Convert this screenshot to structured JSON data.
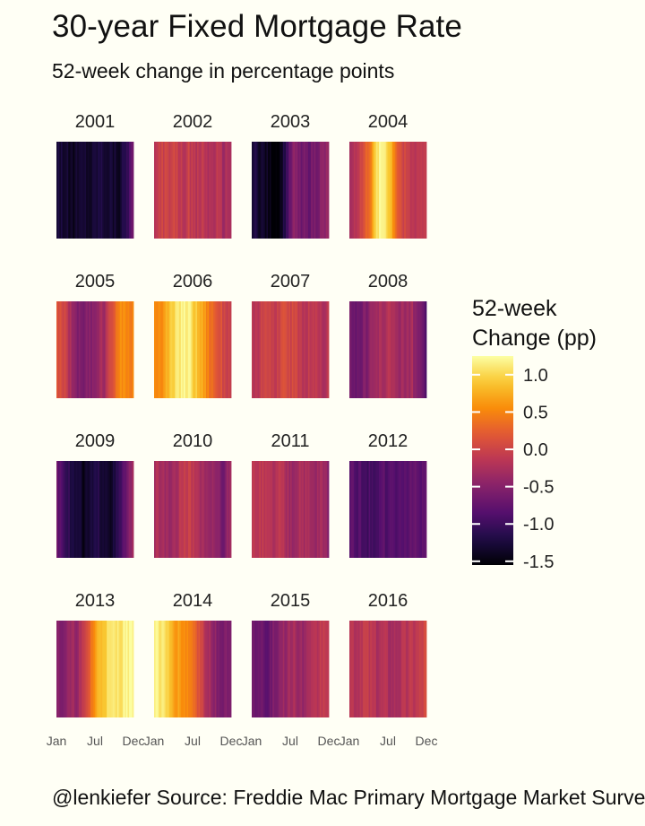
{
  "title": "30-year Fixed Mortgage Rate",
  "subtitle": "52-week change in percentage points",
  "caption": "@lenkiefer Source: Freddie Mac Primary Mortgage Market Survey",
  "legend": {
    "title_line1": "52-week",
    "title_line2": "Change (pp)",
    "ticks": [
      1.0,
      0.5,
      0.0,
      -0.5,
      -1.0,
      -1.5
    ],
    "tick_labels": [
      "1.0",
      "0.5",
      "0.0",
      "-0.5",
      "-1.0",
      "-1.5"
    ],
    "min": -1.55,
    "max": 1.25
  },
  "colors": {
    "background": "#fffff5",
    "palette": "inferno"
  },
  "chart_data": {
    "type": "heatmap",
    "facet_by": "year",
    "x_tick_labels": [
      "Jan",
      "Jul",
      "Dec"
    ],
    "weeks_per_year": 52,
    "panels": [
      {
        "year": "2001",
        "control_points": [
          -1.2,
          -1.3,
          -1.4,
          -1.35,
          -1.3,
          -1.35,
          -1.2,
          -1.25,
          -1.3,
          -1.35,
          -1.1,
          -0.7
        ]
      },
      {
        "year": "2002",
        "control_points": [
          -0.2,
          0.05,
          -0.1,
          0.0,
          -0.15,
          -0.05,
          -0.2,
          -0.1,
          -0.25,
          -0.15,
          -0.3,
          -0.2
        ]
      },
      {
        "year": "2003",
        "control_points": [
          -1.2,
          -1.3,
          -1.4,
          -1.55,
          -1.5,
          -1.0,
          -0.5,
          -0.6,
          -0.7,
          -0.6,
          -0.5,
          -0.45
        ]
      },
      {
        "year": "2004",
        "control_points": [
          -0.3,
          -0.1,
          0.1,
          0.5,
          1.1,
          1.2,
          0.8,
          0.2,
          0.0,
          -0.15,
          -0.1,
          -0.05
        ]
      },
      {
        "year": "2005",
        "control_points": [
          0.1,
          0.05,
          -0.3,
          -0.5,
          -0.6,
          -0.5,
          -0.35,
          -0.3,
          0.2,
          0.5,
          0.6,
          0.45
        ]
      },
      {
        "year": "2006",
        "control_points": [
          0.55,
          0.6,
          0.8,
          1.0,
          1.2,
          1.15,
          0.9,
          0.7,
          0.4,
          0.2,
          0.05,
          -0.05
        ]
      },
      {
        "year": "2007",
        "control_points": [
          -0.2,
          -0.1,
          0.05,
          -0.1,
          0.0,
          0.1,
          0.0,
          -0.1,
          -0.15,
          -0.05,
          -0.2,
          -0.15
        ]
      },
      {
        "year": "2008",
        "control_points": [
          -0.55,
          -0.7,
          -0.6,
          -0.4,
          -0.3,
          -0.25,
          -0.2,
          -0.3,
          -0.35,
          -0.3,
          -0.6,
          -0.9
        ]
      },
      {
        "year": "2009",
        "control_points": [
          -0.7,
          -0.9,
          -1.2,
          -1.3,
          -1.4,
          -1.3,
          -1.2,
          -1.25,
          -1.35,
          -1.1,
          -0.7,
          -0.4
        ]
      },
      {
        "year": "2010",
        "control_points": [
          -0.3,
          -0.25,
          -0.35,
          -0.3,
          -0.1,
          0.0,
          -0.2,
          -0.35,
          -0.4,
          -0.5,
          -0.6,
          -0.3
        ]
      },
      {
        "year": "2011",
        "control_points": [
          -0.2,
          -0.1,
          -0.2,
          -0.25,
          -0.15,
          -0.3,
          -0.35,
          -0.2,
          -0.3,
          -0.4,
          -0.3,
          -0.45
        ]
      },
      {
        "year": "2012",
        "control_points": [
          -0.8,
          -0.85,
          -0.9,
          -0.95,
          -0.9,
          -0.85,
          -0.9,
          -0.85,
          -0.8,
          -0.75,
          -0.8,
          -0.75
        ]
      },
      {
        "year": "2013",
        "control_points": [
          -0.55,
          -0.5,
          -0.4,
          -0.35,
          -0.1,
          0.4,
          0.8,
          1.0,
          1.05,
          1.1,
          1.2,
          1.25
        ]
      },
      {
        "year": "2014",
        "control_points": [
          1.2,
          1.1,
          0.9,
          0.7,
          0.6,
          0.5,
          0.3,
          -0.05,
          -0.3,
          -0.5,
          -0.55,
          -0.6
        ]
      },
      {
        "year": "2015",
        "control_points": [
          -0.7,
          -0.6,
          -0.75,
          -0.6,
          -0.5,
          -0.35,
          -0.3,
          -0.4,
          -0.35,
          -0.25,
          -0.1,
          -0.05
        ]
      },
      {
        "year": "2016",
        "control_points": [
          -0.1,
          -0.2,
          -0.05,
          -0.15,
          -0.25,
          -0.2,
          -0.3,
          -0.25,
          -0.2,
          -0.15,
          -0.1,
          0.05
        ]
      }
    ]
  }
}
